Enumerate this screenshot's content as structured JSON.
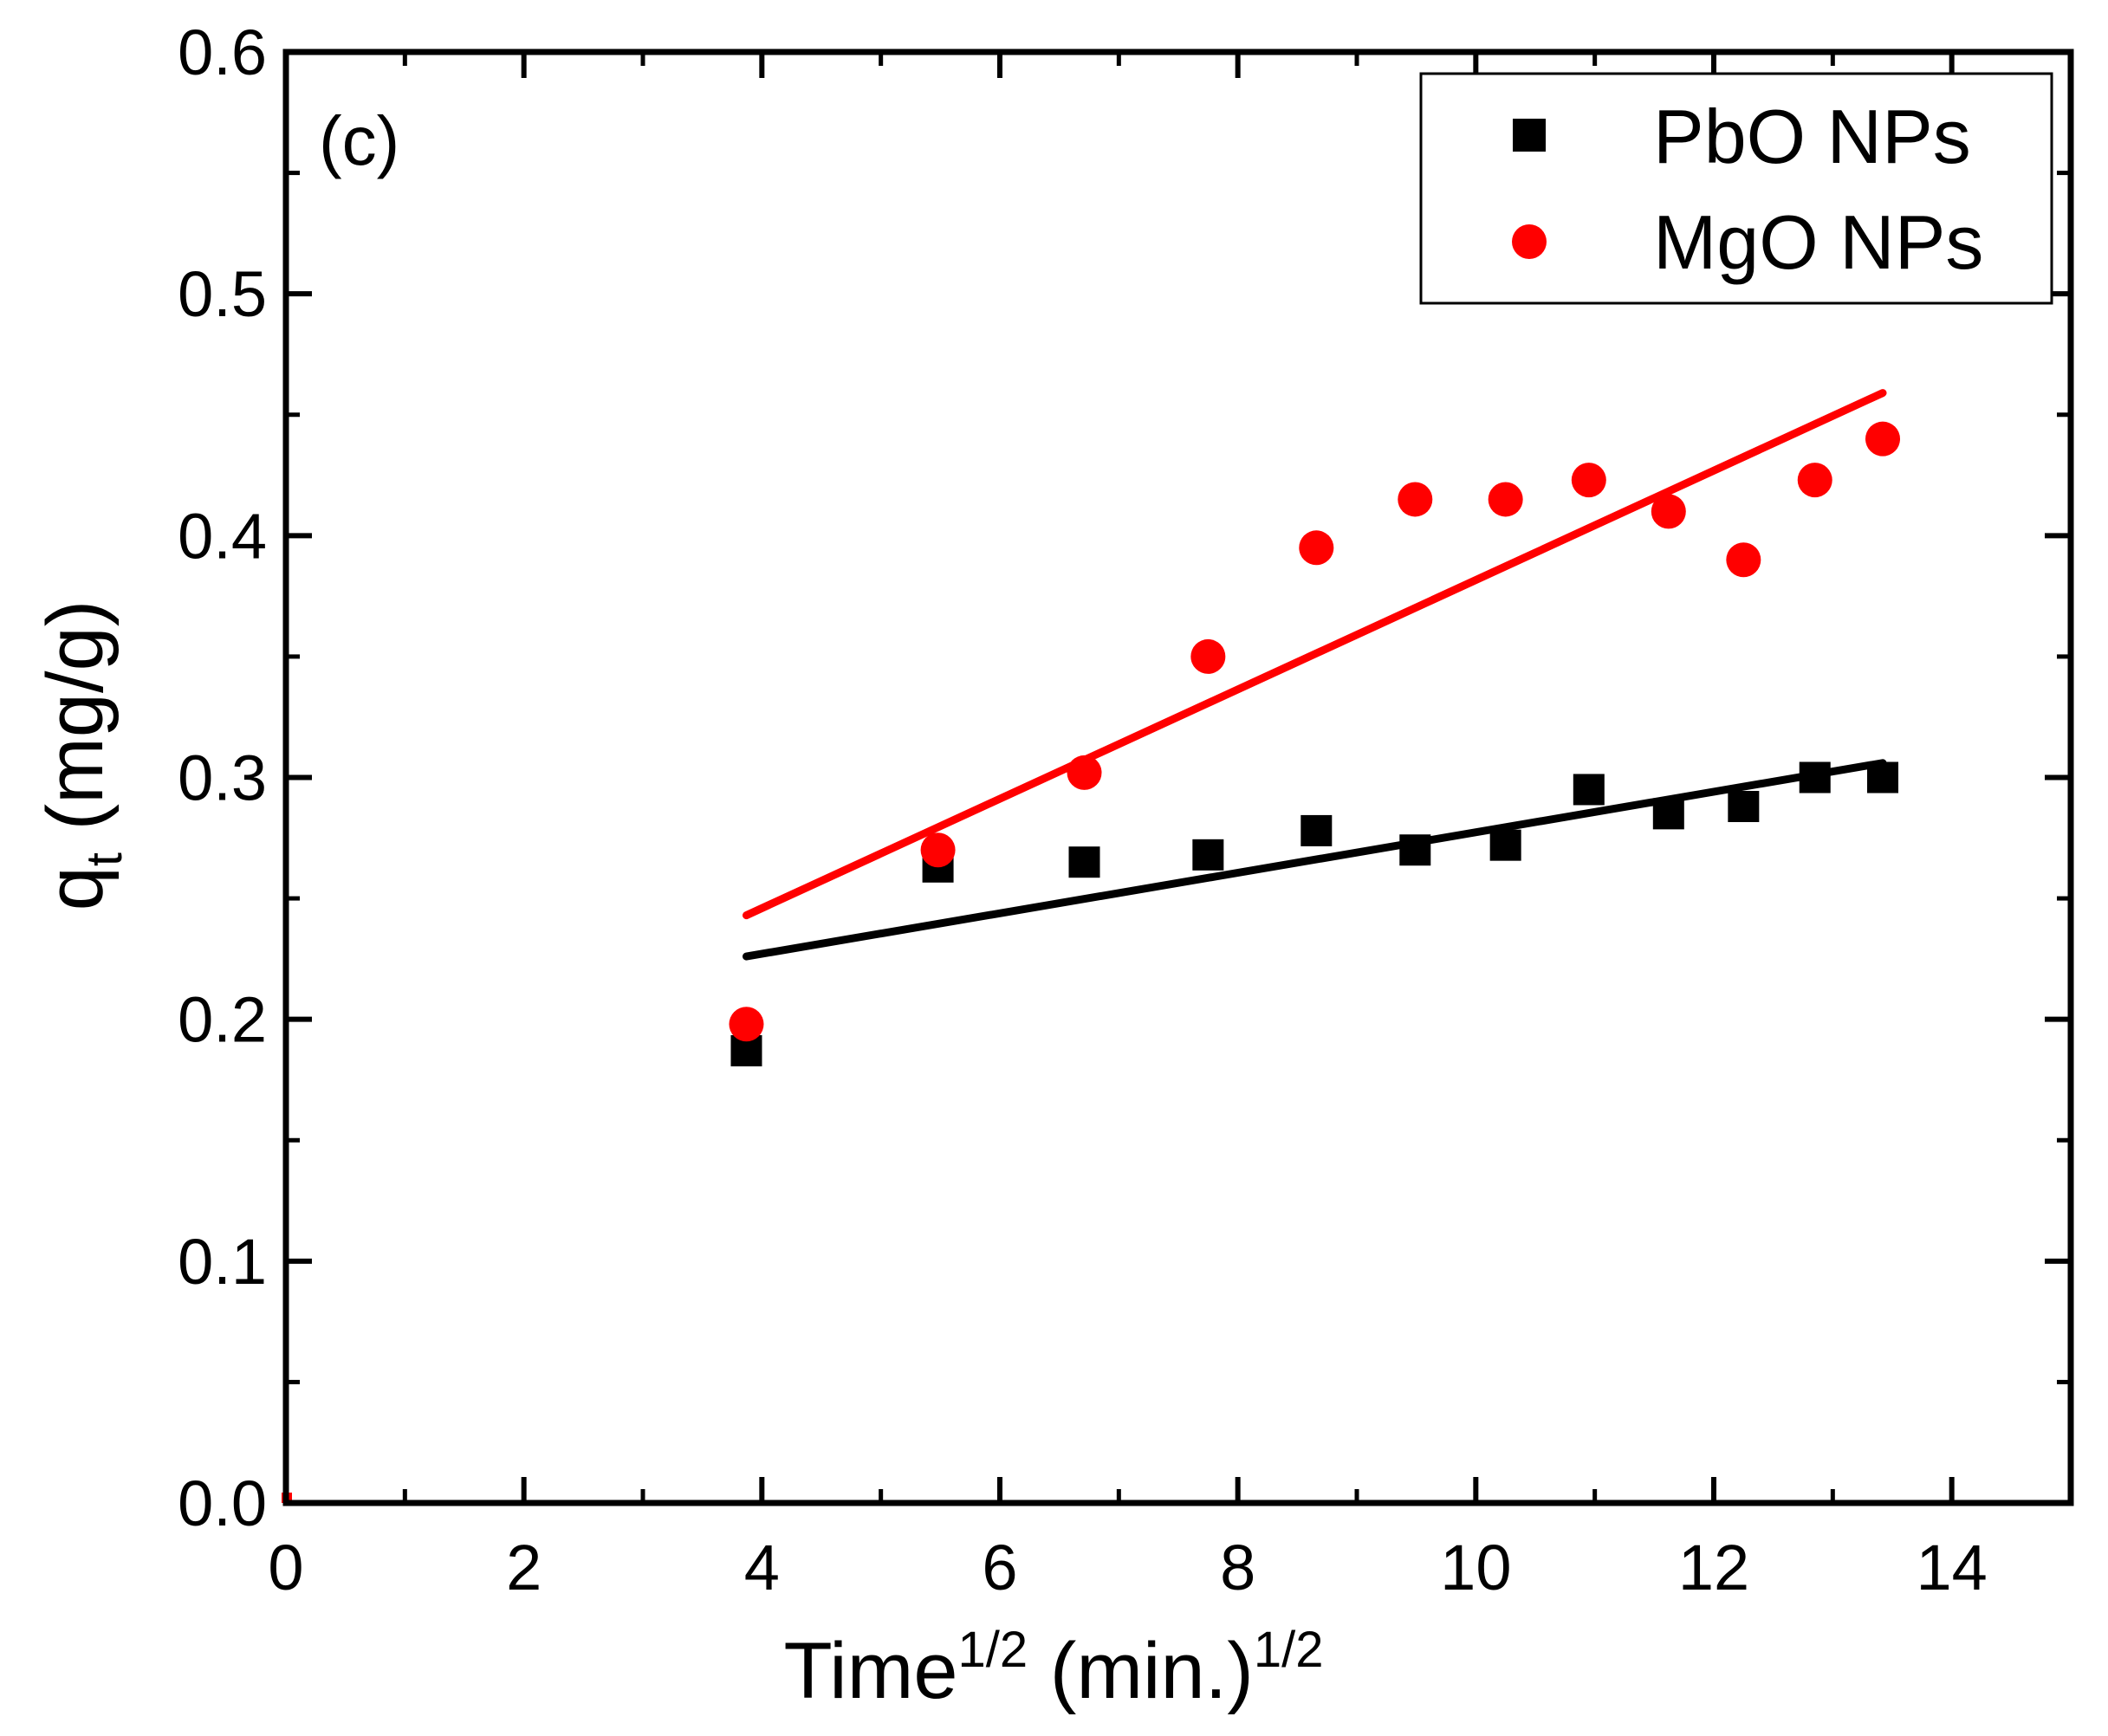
{
  "chart_data": {
    "type": "scatter",
    "panel_label": "(c)",
    "xlabel": {
      "main": "Time",
      "sup1": "1/2",
      "mid": " (min.)",
      "sup2": "1/2"
    },
    "ylabel": {
      "main": "q",
      "sub": "t",
      "unit": " (mg/g)"
    },
    "xlim": [
      0,
      15
    ],
    "ylim": [
      0,
      0.6
    ],
    "x_ticks": [
      0,
      2,
      4,
      6,
      8,
      10,
      12,
      14
    ],
    "x_tick_labels": [
      "0",
      "2",
      "4",
      "6",
      "8",
      "10",
      "12",
      "14"
    ],
    "y_ticks": [
      0.0,
      0.1,
      0.2,
      0.3,
      0.4,
      0.5,
      0.6
    ],
    "y_tick_labels": [
      "0.0",
      "0.1",
      "0.2",
      "0.3",
      "0.4",
      "0.5",
      "0.6"
    ],
    "legend_position": "top-right",
    "series": [
      {
        "name": "PbO NPs",
        "marker": "square",
        "color": "#000000",
        "points": [
          [
            0,
            0.0
          ],
          [
            3.87,
            0.187
          ],
          [
            5.48,
            0.263
          ],
          [
            6.71,
            0.265
          ],
          [
            7.75,
            0.268
          ],
          [
            8.66,
            0.278
          ],
          [
            9.49,
            0.27
          ],
          [
            10.25,
            0.272
          ],
          [
            10.95,
            0.295
          ],
          [
            11.62,
            0.285
          ],
          [
            12.25,
            0.288
          ],
          [
            12.85,
            0.3
          ],
          [
            13.42,
            0.3
          ]
        ],
        "fit_line": [
          [
            3.87,
            0.226
          ],
          [
            13.42,
            0.306
          ]
        ]
      },
      {
        "name": "MgO NPs",
        "marker": "circle",
        "color": "#ff0000",
        "points": [
          [
            0,
            0.0
          ],
          [
            3.87,
            0.198
          ],
          [
            5.48,
            0.27
          ],
          [
            6.71,
            0.302
          ],
          [
            7.75,
            0.35
          ],
          [
            8.66,
            0.395
          ],
          [
            9.49,
            0.415
          ],
          [
            10.25,
            0.415
          ],
          [
            10.95,
            0.423
          ],
          [
            11.62,
            0.41
          ],
          [
            12.25,
            0.39
          ],
          [
            12.85,
            0.423
          ],
          [
            13.42,
            0.44
          ]
        ],
        "fit_line": [
          [
            3.87,
            0.243
          ],
          [
            13.42,
            0.459
          ]
        ]
      }
    ]
  }
}
